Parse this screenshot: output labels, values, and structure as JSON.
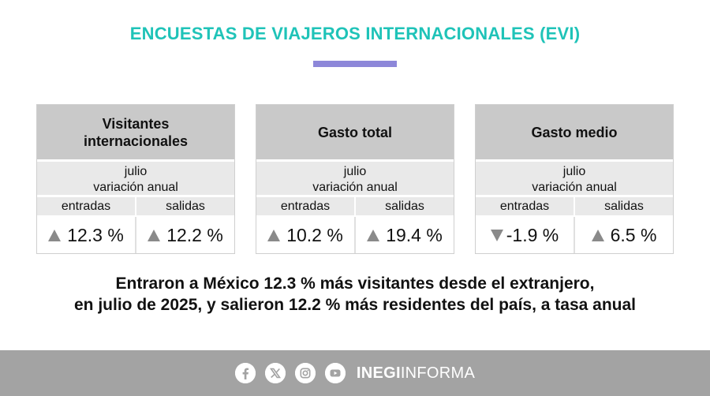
{
  "title": "ENCUESTAS DE VIAJEROS INTERNACIONALES (EVI)",
  "cards": [
    {
      "heading_line1": "Visitantes",
      "heading_line2": "internacionales",
      "period": "julio",
      "measure": "variación anual",
      "col_left": "entradas",
      "col_right": "salidas",
      "left_value": "12.3 %",
      "left_direction": "up",
      "right_value": "12.2 %",
      "right_direction": "up"
    },
    {
      "heading_line1": "Gasto total",
      "heading_line2": "",
      "period": "julio",
      "measure": "variación anual",
      "col_left": "entradas",
      "col_right": "salidas",
      "left_value": "10.2 %",
      "left_direction": "up",
      "right_value": "19.4 %",
      "right_direction": "up"
    },
    {
      "heading_line1": "Gasto medio",
      "heading_line2": "",
      "period": "julio",
      "measure": "variación anual",
      "col_left": "entradas",
      "col_right": "salidas",
      "left_value": "-1.9 %",
      "left_direction": "down",
      "right_value": "6.5 %",
      "right_direction": "up"
    }
  ],
  "headline_line1": "Entraron a México 12.3 % más visitantes desde el extranjero,",
  "headline_line2": "en julio de 2025, y salieron 12.2 % más residentes del país, a tasa anual",
  "footer": {
    "icons": [
      "facebook-icon",
      "x-icon",
      "instagram-icon",
      "youtube-icon"
    ],
    "brand_bold": "INEGI",
    "brand_light": "INFORMA"
  },
  "colors": {
    "title": "#1fc3b8",
    "accent_bar": "#8d87d9",
    "header_gray": "#c9c9c9",
    "sub_gray": "#e9e9e9",
    "footer_gray": "#a3a3a3",
    "triangle": "#8a8a8a"
  }
}
